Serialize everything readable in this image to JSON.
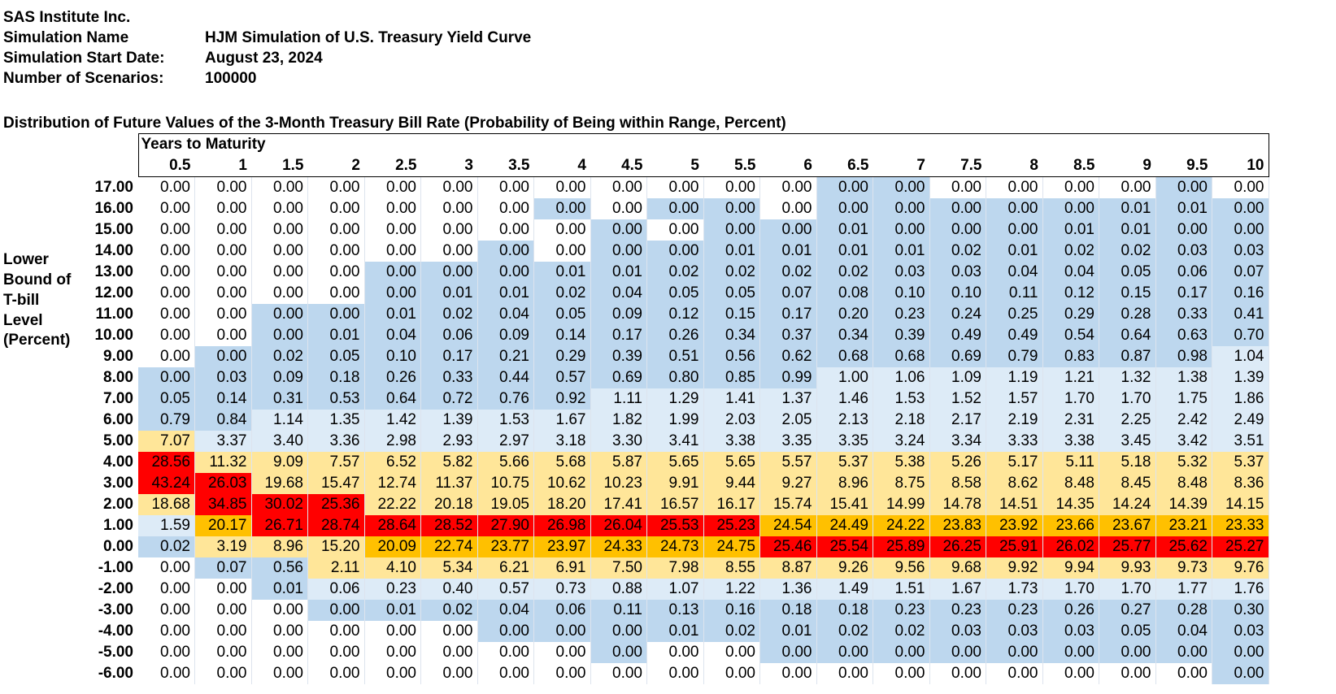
{
  "header": {
    "company": "SAS Institute Inc.",
    "sim_name_label": "Simulation Name",
    "sim_name_value": "HJM Simulation of U.S. Treasury Yield Curve",
    "start_label": "Simulation Start Date:",
    "start_value": "August 23, 2024",
    "scenarios_label": "Number of Scenarios:",
    "scenarios_value": "100000"
  },
  "table": {
    "title": "Distribution of Future Values of the 3-Month Treasury Bill Rate (Probability of Being within Range, Percent)",
    "col_group_label": "Years to Maturity",
    "row_axis_label": [
      "Lower",
      "Bound of",
      "T-bill",
      "Level",
      "(Percent)"
    ],
    "colors": {
      "red": "#ff0000",
      "orange": "#ffc000",
      "light_orange": "#ffe699",
      "light_blue": "#ddebf7",
      "blue": "#bdd7ee",
      "white": "#ffffff"
    },
    "columns": [
      "0.5",
      "1",
      "1.5",
      "2",
      "2.5",
      "3",
      "3.5",
      "4",
      "4.5",
      "5",
      "5.5",
      "6",
      "6.5",
      "7",
      "7.5",
      "8",
      "8.5",
      "9",
      "9.5",
      "10"
    ],
    "rows": [
      {
        "label": "17.00",
        "values": [
          "0.00",
          "0.00",
          "0.00",
          "0.00",
          "0.00",
          "0.00",
          "0.00",
          "0.00",
          "0.00",
          "0.00",
          "0.00",
          "0.00",
          "0.00",
          "0.00",
          "0.00",
          "0.00",
          "0.00",
          "0.00",
          "0.00",
          "0.00"
        ]
      },
      {
        "label": "16.00",
        "values": [
          "0.00",
          "0.00",
          "0.00",
          "0.00",
          "0.00",
          "0.00",
          "0.00",
          "0.00",
          "0.00",
          "0.00",
          "0.00",
          "0.00",
          "0.00",
          "0.00",
          "0.00",
          "0.00",
          "0.00",
          "0.01",
          "0.01",
          "0.00"
        ]
      },
      {
        "label": "15.00",
        "values": [
          "0.00",
          "0.00",
          "0.00",
          "0.00",
          "0.00",
          "0.00",
          "0.00",
          "0.00",
          "0.00",
          "0.00",
          "0.00",
          "0.00",
          "0.01",
          "0.00",
          "0.00",
          "0.00",
          "0.01",
          "0.01",
          "0.00",
          "0.00"
        ]
      },
      {
        "label": "14.00",
        "values": [
          "0.00",
          "0.00",
          "0.00",
          "0.00",
          "0.00",
          "0.00",
          "0.00",
          "0.00",
          "0.00",
          "0.00",
          "0.01",
          "0.01",
          "0.01",
          "0.01",
          "0.02",
          "0.01",
          "0.02",
          "0.02",
          "0.03",
          "0.03"
        ]
      },
      {
        "label": "13.00",
        "values": [
          "0.00",
          "0.00",
          "0.00",
          "0.00",
          "0.00",
          "0.00",
          "0.00",
          "0.01",
          "0.01",
          "0.02",
          "0.02",
          "0.02",
          "0.02",
          "0.03",
          "0.03",
          "0.04",
          "0.04",
          "0.05",
          "0.06",
          "0.07"
        ]
      },
      {
        "label": "12.00",
        "values": [
          "0.00",
          "0.00",
          "0.00",
          "0.00",
          "0.00",
          "0.01",
          "0.01",
          "0.02",
          "0.04",
          "0.05",
          "0.05",
          "0.07",
          "0.08",
          "0.10",
          "0.10",
          "0.11",
          "0.12",
          "0.15",
          "0.17",
          "0.16"
        ]
      },
      {
        "label": "11.00",
        "values": [
          "0.00",
          "0.00",
          "0.00",
          "0.00",
          "0.01",
          "0.02",
          "0.04",
          "0.05",
          "0.09",
          "0.12",
          "0.15",
          "0.17",
          "0.20",
          "0.23",
          "0.24",
          "0.25",
          "0.29",
          "0.28",
          "0.33",
          "0.41"
        ]
      },
      {
        "label": "10.00",
        "values": [
          "0.00",
          "0.00",
          "0.00",
          "0.01",
          "0.04",
          "0.06",
          "0.09",
          "0.14",
          "0.17",
          "0.26",
          "0.34",
          "0.37",
          "0.34",
          "0.39",
          "0.49",
          "0.49",
          "0.54",
          "0.64",
          "0.63",
          "0.70"
        ]
      },
      {
        "label": "9.00",
        "values": [
          "0.00",
          "0.00",
          "0.02",
          "0.05",
          "0.10",
          "0.17",
          "0.21",
          "0.29",
          "0.39",
          "0.51",
          "0.56",
          "0.62",
          "0.68",
          "0.68",
          "0.69",
          "0.79",
          "0.83",
          "0.87",
          "0.98",
          "1.04"
        ]
      },
      {
        "label": "8.00",
        "values": [
          "0.00",
          "0.03",
          "0.09",
          "0.18",
          "0.26",
          "0.33",
          "0.44",
          "0.57",
          "0.69",
          "0.80",
          "0.85",
          "0.99",
          "1.00",
          "1.06",
          "1.09",
          "1.19",
          "1.21",
          "1.32",
          "1.38",
          "1.39"
        ]
      },
      {
        "label": "7.00",
        "values": [
          "0.05",
          "0.14",
          "0.31",
          "0.53",
          "0.64",
          "0.72",
          "0.76",
          "0.92",
          "1.11",
          "1.29",
          "1.41",
          "1.37",
          "1.46",
          "1.53",
          "1.52",
          "1.57",
          "1.70",
          "1.70",
          "1.75",
          "1.86"
        ]
      },
      {
        "label": "6.00",
        "values": [
          "0.79",
          "0.84",
          "1.14",
          "1.35",
          "1.42",
          "1.39",
          "1.53",
          "1.67",
          "1.82",
          "1.99",
          "2.03",
          "2.05",
          "2.13",
          "2.18",
          "2.17",
          "2.19",
          "2.31",
          "2.25",
          "2.42",
          "2.49"
        ]
      },
      {
        "label": "5.00",
        "values": [
          "7.07",
          "3.37",
          "3.40",
          "3.36",
          "2.98",
          "2.93",
          "2.97",
          "3.18",
          "3.30",
          "3.41",
          "3.38",
          "3.35",
          "3.35",
          "3.24",
          "3.34",
          "3.33",
          "3.38",
          "3.45",
          "3.42",
          "3.51"
        ]
      },
      {
        "label": "4.00",
        "values": [
          "28.56",
          "11.32",
          "9.09",
          "7.57",
          "6.52",
          "5.82",
          "5.66",
          "5.68",
          "5.87",
          "5.65",
          "5.65",
          "5.57",
          "5.37",
          "5.38",
          "5.26",
          "5.17",
          "5.11",
          "5.18",
          "5.32",
          "5.37"
        ]
      },
      {
        "label": "3.00",
        "values": [
          "43.24",
          "26.03",
          "19.68",
          "15.47",
          "12.74",
          "11.37",
          "10.75",
          "10.62",
          "10.23",
          "9.91",
          "9.44",
          "9.27",
          "8.96",
          "8.75",
          "8.58",
          "8.62",
          "8.48",
          "8.45",
          "8.48",
          "8.36"
        ]
      },
      {
        "label": "2.00",
        "values": [
          "18.68",
          "34.85",
          "30.02",
          "25.36",
          "22.22",
          "20.18",
          "19.05",
          "18.20",
          "17.41",
          "16.57",
          "16.17",
          "15.74",
          "15.41",
          "14.99",
          "14.78",
          "14.51",
          "14.35",
          "14.24",
          "14.39",
          "14.15"
        ]
      },
      {
        "label": "1.00",
        "values": [
          "1.59",
          "20.17",
          "26.71",
          "28.74",
          "28.64",
          "28.52",
          "27.90",
          "26.98",
          "26.04",
          "25.53",
          "25.23",
          "24.54",
          "24.49",
          "24.22",
          "23.83",
          "23.92",
          "23.66",
          "23.67",
          "23.21",
          "23.33"
        ]
      },
      {
        "label": "0.00",
        "values": [
          "0.02",
          "3.19",
          "8.96",
          "15.20",
          "20.09",
          "22.74",
          "23.77",
          "23.97",
          "24.33",
          "24.73",
          "24.75",
          "25.46",
          "25.54",
          "25.89",
          "26.25",
          "25.91",
          "26.02",
          "25.77",
          "25.62",
          "25.27"
        ]
      },
      {
        "label": "-1.00",
        "values": [
          "0.00",
          "0.07",
          "0.56",
          "2.11",
          "4.10",
          "5.34",
          "6.21",
          "6.91",
          "7.50",
          "7.98",
          "8.55",
          "8.87",
          "9.26",
          "9.56",
          "9.68",
          "9.92",
          "9.94",
          "9.93",
          "9.73",
          "9.76"
        ]
      },
      {
        "label": "-2.00",
        "values": [
          "0.00",
          "0.00",
          "0.01",
          "0.06",
          "0.23",
          "0.40",
          "0.57",
          "0.73",
          "0.88",
          "1.07",
          "1.22",
          "1.36",
          "1.49",
          "1.51",
          "1.67",
          "1.73",
          "1.70",
          "1.70",
          "1.77",
          "1.76"
        ]
      },
      {
        "label": "-3.00",
        "values": [
          "0.00",
          "0.00",
          "0.00",
          "0.00",
          "0.01",
          "0.02",
          "0.04",
          "0.06",
          "0.11",
          "0.13",
          "0.16",
          "0.18",
          "0.18",
          "0.23",
          "0.23",
          "0.23",
          "0.26",
          "0.27",
          "0.28",
          "0.30"
        ]
      },
      {
        "label": "-4.00",
        "values": [
          "0.00",
          "0.00",
          "0.00",
          "0.00",
          "0.00",
          "0.00",
          "0.00",
          "0.00",
          "0.00",
          "0.01",
          "0.02",
          "0.01",
          "0.02",
          "0.02",
          "0.03",
          "0.03",
          "0.03",
          "0.05",
          "0.04",
          "0.03"
        ]
      },
      {
        "label": "-5.00",
        "values": [
          "0.00",
          "0.00",
          "0.00",
          "0.00",
          "0.00",
          "0.00",
          "0.00",
          "0.00",
          "0.00",
          "0.00",
          "0.00",
          "0.00",
          "0.00",
          "0.00",
          "0.00",
          "0.00",
          "0.00",
          "0.00",
          "0.00",
          "0.00"
        ]
      },
      {
        "label": "-6.00",
        "values": [
          "0.00",
          "0.00",
          "0.00",
          "0.00",
          "0.00",
          "0.00",
          "0.00",
          "0.00",
          "0.00",
          "0.00",
          "0.00",
          "0.00",
          "0.00",
          "0.00",
          "0.00",
          "0.00",
          "0.00",
          "0.00",
          "0.00",
          "0.00"
        ]
      }
    ],
    "fills": [
      "WWWWWWWWWWWWBBWWWWBW",
      "WWWWWWWBWBBWBBBBBBBB",
      "WWWWWWWWBWBBBBBBBBBB",
      "WWWWWWBWBBBBBBBBBBBB",
      "WWWWBBBBBBBBBBBBBBBB",
      "WWWWBBBBBBBBBBBBBBBB",
      "WWBBBBBBBBBBBBBBBBBB",
      "WWBBBBBBBBBBBBBBBBBB",
      "WBBBBBBBBBBBBBBBBBBL",
      "BBBBBBBBBBBBLLLLLLLL",
      "BBBBBBBBLLLLLLLLLLLL",
      "BBLLLLLLLLLLLLLLLLLL",
      "YLLLLLLLLLLLLLLLLLLL",
      "RYYYYYYYYYYYYYYYYYYY",
      "RRYYYYYYYYYYYYYYYYYY",
      "YRRRYYYYYYYYYYYYYYYY",
      "LORRRRRRRRROOOOOOOOO",
      "BYYYOOOOOOORRRRRRRRR",
      "WBBYYYYYYYYYYYYYYYYY",
      "WWBLLLLLLLLLLLLLLLLL",
      "WWWBBBBBBBBBBBBBBBBB",
      "WWWWWWBBBBBBBBBBBBBB",
      "WWWWWWWWBWWBBBBBBBBB",
      "WWWWWWWWWWWWWWWWWWWB"
    ]
  }
}
